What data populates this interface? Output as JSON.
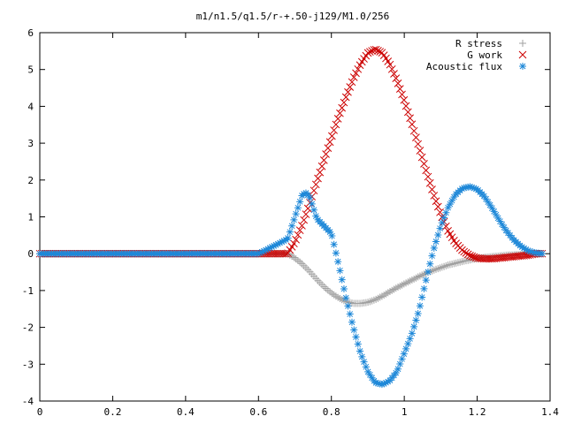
{
  "chart_data": {
    "type": "scatter",
    "title": "m1/n1.5/q1.5/r-+.50-j129/M1.0/256",
    "xlabel": "",
    "ylabel": "",
    "xlim": [
      0,
      1.4
    ],
    "ylim": [
      -4,
      6
    ],
    "xticks": [
      0,
      0.2,
      0.4,
      0.6,
      0.8,
      1,
      1.2,
      1.4
    ],
    "yticks": [
      -4,
      -3,
      -2,
      -1,
      0,
      1,
      2,
      3,
      4,
      5,
      6
    ],
    "xtick_labels": [
      "0",
      "0.2",
      "0.4",
      "0.6",
      "0.8",
      "1",
      "1.2",
      "1.4"
    ],
    "ytick_labels": [
      "-4",
      "-3",
      "-2",
      "-1",
      "0",
      "1",
      "2",
      "3",
      "4",
      "5",
      "6"
    ],
    "grid": false,
    "legend_position": "top-right",
    "series": [
      {
        "name": "R stress",
        "marker": "plus",
        "color": "#a0a0a0",
        "x": [
          0.0,
          0.1,
          0.2,
          0.3,
          0.4,
          0.5,
          0.6,
          0.68,
          0.7,
          0.72,
          0.74,
          0.76,
          0.78,
          0.8,
          0.82,
          0.84,
          0.86,
          0.88,
          0.9,
          0.92,
          0.94,
          0.96,
          0.98,
          1.0,
          1.02,
          1.04,
          1.06,
          1.08,
          1.1,
          1.12,
          1.14,
          1.16,
          1.18,
          1.2,
          1.22,
          1.24,
          1.26,
          1.28,
          1.3,
          1.32,
          1.34,
          1.36,
          1.38
        ],
        "y": [
          0,
          0,
          0,
          0,
          0,
          0,
          0,
          0,
          -0.12,
          -0.28,
          -0.48,
          -0.7,
          -0.9,
          -1.07,
          -1.2,
          -1.3,
          -1.35,
          -1.35,
          -1.32,
          -1.25,
          -1.15,
          -1.03,
          -0.92,
          -0.82,
          -0.72,
          -0.62,
          -0.53,
          -0.45,
          -0.38,
          -0.31,
          -0.26,
          -0.21,
          -0.17,
          -0.13,
          -0.1,
          -0.08,
          -0.06,
          -0.04,
          -0.03,
          -0.02,
          -0.01,
          0,
          0
        ]
      },
      {
        "name": "G work",
        "marker": "cross",
        "color": "#cc0000",
        "x": [
          0.0,
          0.1,
          0.2,
          0.3,
          0.4,
          0.5,
          0.6,
          0.68,
          0.7,
          0.72,
          0.74,
          0.76,
          0.78,
          0.8,
          0.82,
          0.84,
          0.86,
          0.88,
          0.9,
          0.92,
          0.94,
          0.96,
          0.98,
          1.0,
          1.02,
          1.04,
          1.06,
          1.08,
          1.1,
          1.12,
          1.14,
          1.16,
          1.18,
          1.2,
          1.22,
          1.24,
          1.26,
          1.28,
          1.3,
          1.32,
          1.34,
          1.36,
          1.38
        ],
        "y": [
          0,
          0,
          0,
          0,
          0,
          0,
          0,
          0,
          0.32,
          0.78,
          1.35,
          1.95,
          2.55,
          3.15,
          3.72,
          4.25,
          4.75,
          5.15,
          5.45,
          5.55,
          5.45,
          5.15,
          4.7,
          4.15,
          3.55,
          2.9,
          2.25,
          1.62,
          1.07,
          0.62,
          0.3,
          0.08,
          -0.05,
          -0.12,
          -0.14,
          -0.14,
          -0.12,
          -0.1,
          -0.08,
          -0.06,
          -0.04,
          0,
          0
        ]
      },
      {
        "name": "Acoustic flux",
        "marker": "star",
        "color": "#1e88d8",
        "x": [
          0.0,
          0.1,
          0.2,
          0.3,
          0.4,
          0.5,
          0.6,
          0.68,
          0.7,
          0.72,
          0.73,
          0.74,
          0.76,
          0.78,
          0.8,
          0.82,
          0.84,
          0.86,
          0.88,
          0.9,
          0.92,
          0.94,
          0.96,
          0.98,
          1.0,
          1.02,
          1.04,
          1.06,
          1.08,
          1.1,
          1.12,
          1.14,
          1.16,
          1.18,
          1.2,
          1.22,
          1.24,
          1.26,
          1.28,
          1.3,
          1.32,
          1.34,
          1.36,
          1.38
        ],
        "y": [
          0,
          0,
          0,
          0,
          0,
          0,
          0,
          0.4,
          1.0,
          1.6,
          1.65,
          1.55,
          0.95,
          0.75,
          0.55,
          -0.3,
          -1.2,
          -2.0,
          -2.7,
          -3.2,
          -3.5,
          -3.55,
          -3.45,
          -3.2,
          -2.7,
          -2.2,
          -1.55,
          -0.7,
          0.1,
          0.75,
          1.25,
          1.6,
          1.78,
          1.82,
          1.75,
          1.55,
          1.25,
          0.92,
          0.62,
          0.38,
          0.2,
          0.08,
          0.02,
          0
        ]
      }
    ]
  }
}
